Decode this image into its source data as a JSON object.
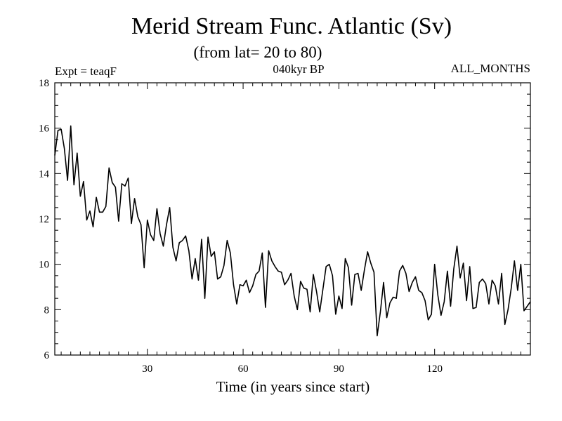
{
  "chart_data": {
    "type": "line",
    "title": "Merid Stream Func. Atlantic (Sv)",
    "subtitle": "(from lat= 20 to 80)",
    "left_label": "Expt = teaqF",
    "center_label": "040kyr BP",
    "right_label": "ALL_MONTHS",
    "xlabel": "Time (in years since start)",
    "ylabel": "",
    "xlim": [
      1,
      150
    ],
    "ylim": [
      6,
      18
    ],
    "x_ticks": [
      30,
      60,
      90,
      120
    ],
    "y_ticks": [
      6,
      8,
      10,
      12,
      14,
      16,
      18
    ],
    "grid": false,
    "series": [
      {
        "name": "Merid Stream Func. Atlantic",
        "color": "#000000",
        "values": [
          14.8,
          15.9,
          15.95,
          15.1,
          13.7,
          16.1,
          13.5,
          14.9,
          13.0,
          13.65,
          11.95,
          12.35,
          11.65,
          12.95,
          12.3,
          12.3,
          12.55,
          14.25,
          13.6,
          13.4,
          11.9,
          13.55,
          13.45,
          13.8,
          11.8,
          12.9,
          12.1,
          11.75,
          9.85,
          11.95,
          11.3,
          11.05,
          12.45,
          11.35,
          10.8,
          11.75,
          12.5,
          10.75,
          10.15,
          10.95,
          11.05,
          11.25,
          10.6,
          9.35,
          10.25,
          9.3,
          11.1,
          8.5,
          11.2,
          10.35,
          10.55,
          9.35,
          9.45,
          9.95,
          11.05,
          10.5,
          9.1,
          8.25,
          9.1,
          9.05,
          9.3,
          8.75,
          9.05,
          9.55,
          9.7,
          10.5,
          8.1,
          10.6,
          10.15,
          9.9,
          9.7,
          9.65,
          9.1,
          9.3,
          9.6,
          8.6,
          8.0,
          9.25,
          8.95,
          8.9,
          7.9,
          9.55,
          8.8,
          7.9,
          8.9,
          9.9,
          10.0,
          9.5,
          7.8,
          8.6,
          8.05,
          10.25,
          9.85,
          8.2,
          9.55,
          9.6,
          8.85,
          9.75,
          10.55,
          10.05,
          9.65,
          6.85,
          7.9,
          9.2,
          7.65,
          8.3,
          8.55,
          8.5,
          9.7,
          9.95,
          9.6,
          8.8,
          9.2,
          9.45,
          8.85,
          8.75,
          8.4,
          7.55,
          7.8,
          10.0,
          8.65,
          7.75,
          8.35,
          9.7,
          8.15,
          9.8,
          10.8,
          9.4,
          10.05,
          8.4,
          9.9,
          8.05,
          8.1,
          9.2,
          9.35,
          9.15,
          8.25,
          9.3,
          9.05,
          8.25,
          9.6,
          7.35,
          8.0,
          8.95,
          10.15,
          8.85,
          10.0,
          7.95,
          8.15,
          8.35
        ]
      }
    ]
  }
}
